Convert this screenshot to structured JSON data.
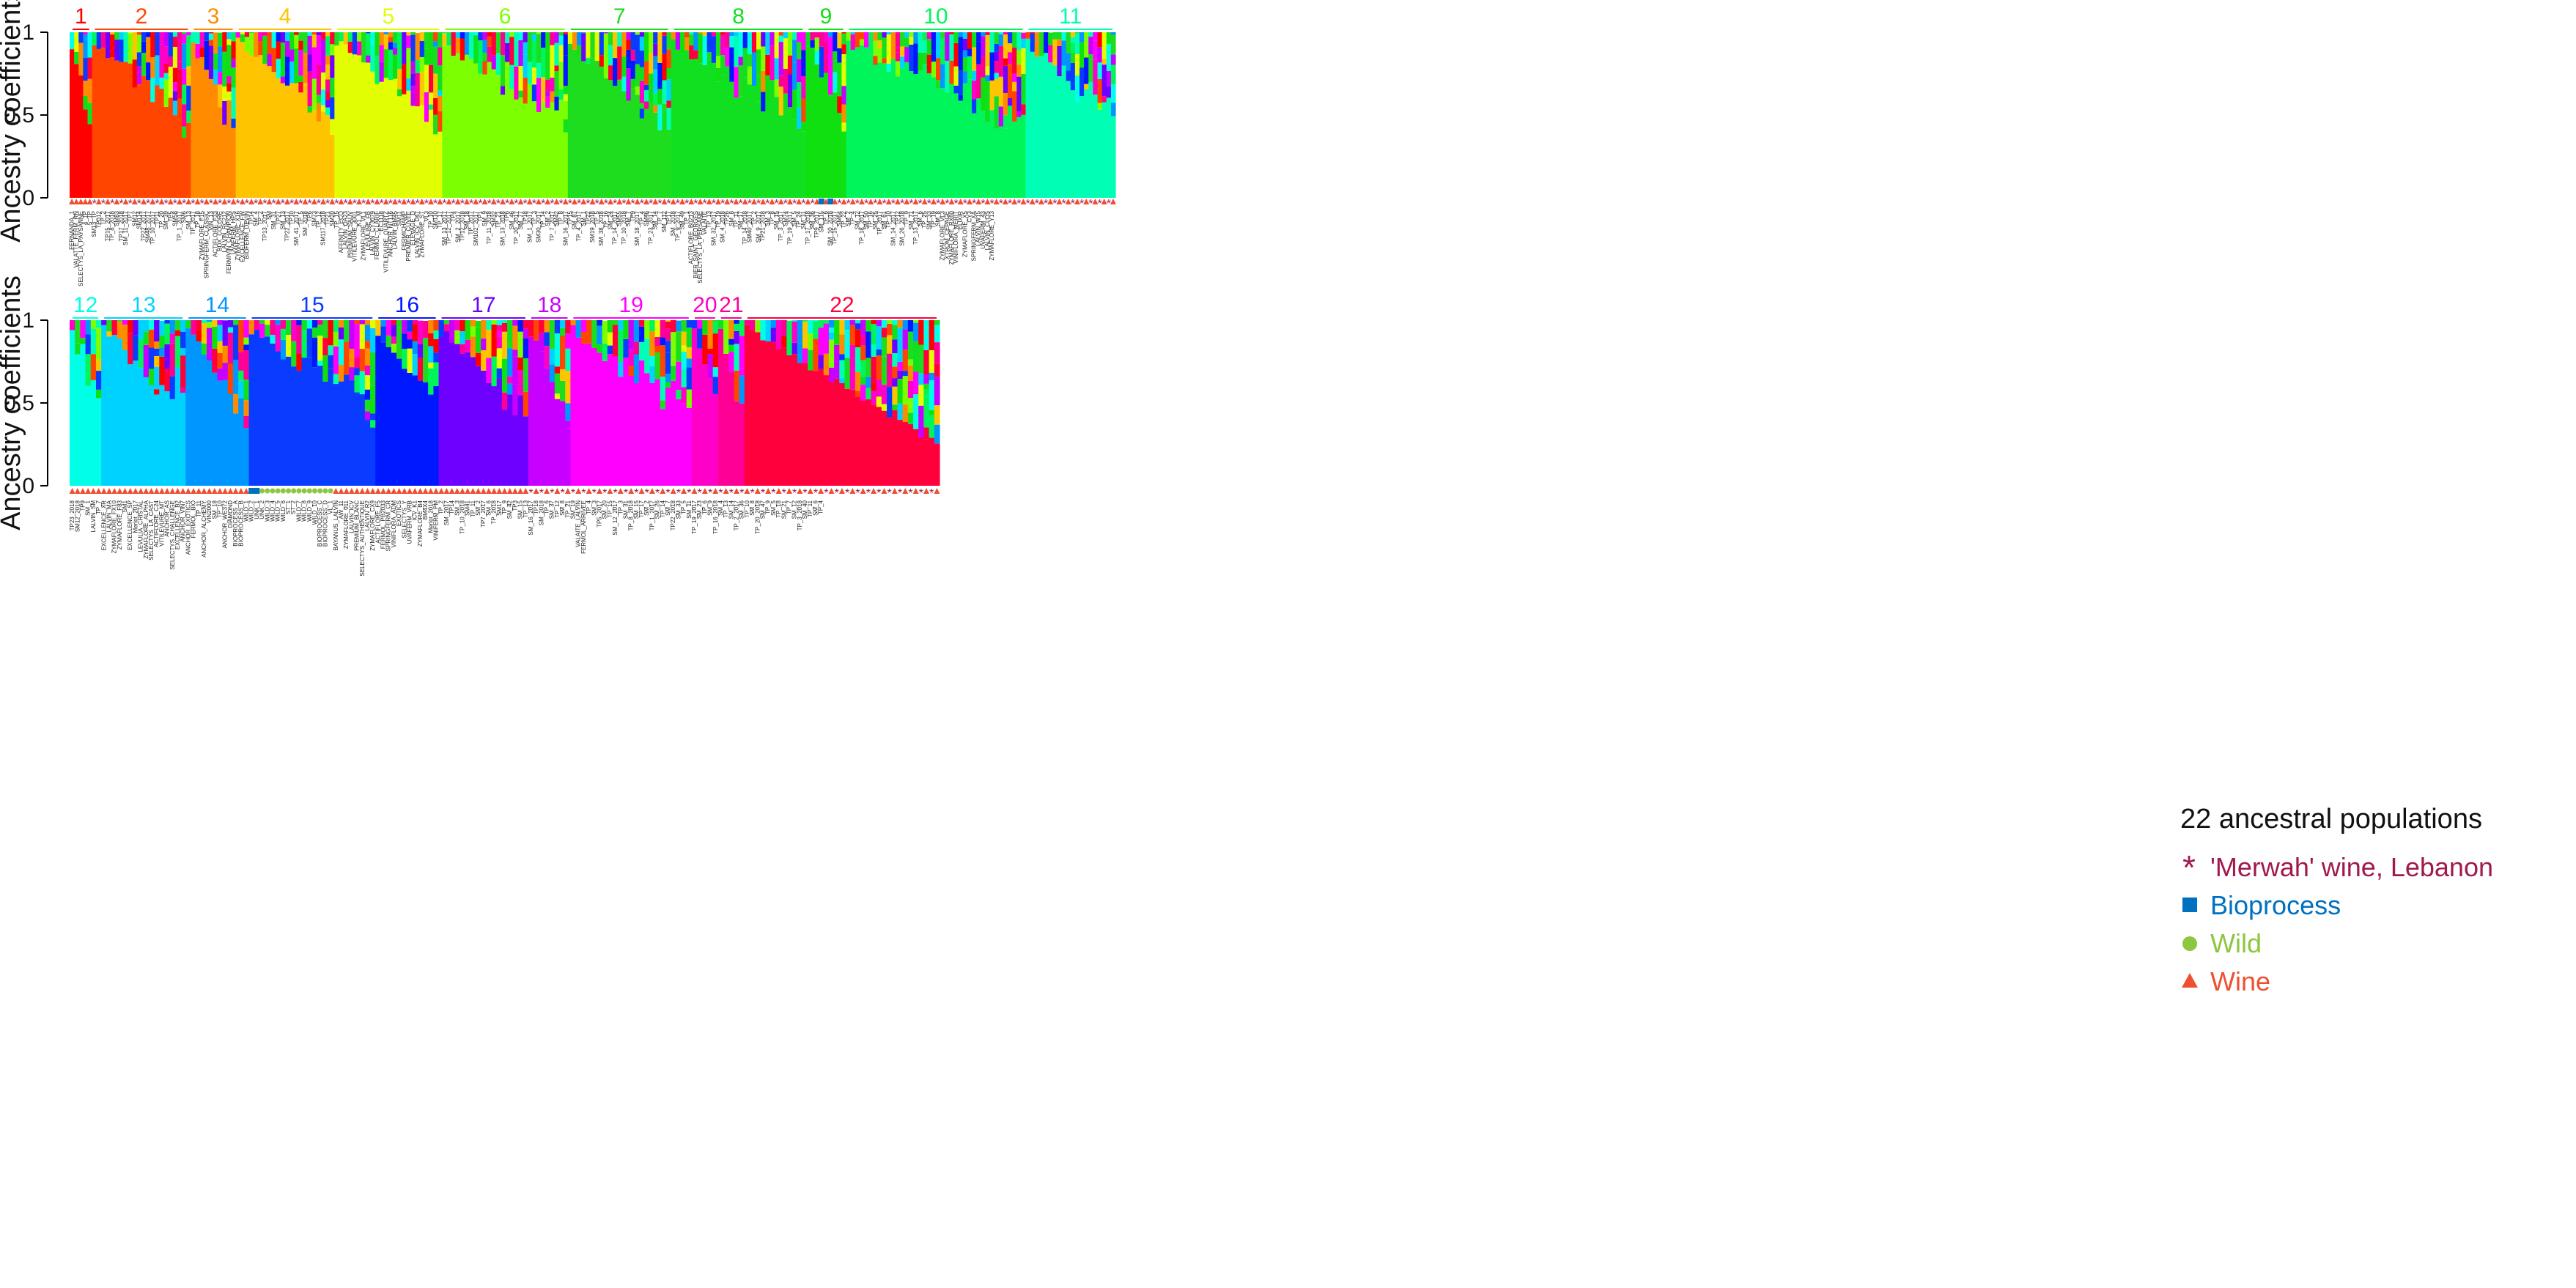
{
  "chart_data": [
    {
      "type": "bar",
      "stacked": true,
      "panel": "top",
      "ylabel": "Ancestry coefficients",
      "ylim": [
        0,
        1
      ],
      "y_ticks": [
        "0",
        "0.5",
        "1"
      ],
      "clusters": [
        {
          "label": "1",
          "color": "#ff0000",
          "n": 5
        },
        {
          "label": "2",
          "color": "#ff4500",
          "n": 22
        },
        {
          "label": "3",
          "color": "#ff8c00",
          "n": 10
        },
        {
          "label": "4",
          "color": "#ffc400",
          "n": 22
        },
        {
          "label": "5",
          "color": "#e1ff00",
          "n": 24
        },
        {
          "label": "6",
          "color": "#7cff00",
          "n": 28
        },
        {
          "label": "7",
          "color": "#1edc1e",
          "n": 23
        },
        {
          "label": "8",
          "color": "#10e020",
          "n": 30
        },
        {
          "label": "9",
          "color": "#10e010",
          "n": 9
        },
        {
          "label": "10",
          "color": "#00f55a",
          "n": 40
        },
        {
          "label": "11",
          "color": "#00ffb4",
          "n": 20
        }
      ],
      "sample_labels": [
        "FERNANDA_1",
        "VALATTE_FERM_RN",
        "SELECTYS_LA_PAYSANNE",
        "4_TP",
        "5_TP",
        "SM13_TP",
        "TP012",
        "TP_2",
        "TP15_2017",
        "TP_8_2018",
        "SM83",
        "TP17_2018",
        "SM_11_2017",
        "TP7",
        "SM12",
        "SM114",
        "TP22_2017",
        "SM48_2017",
        "TP_10_2017",
        "TP11",
        "TP_20",
        "SM_39",
        "TP5",
        "SM58",
        "TP_1_2017",
        "SM6",
        "SM_13",
        "TP_2017",
        "TP_18",
        "ZYMAFLORE_F15",
        "SPRINGFERM_CLASSIC",
        "VIN_13",
        "ACTIFLORE_F33",
        "BDX_COLORE",
        "LALVIN_RC212",
        "FERMIVIN_CHAMPION",
        "UVAFERM_HPS",
        "ZYMAFLORE_X16",
        "EXCELLENCE_FW",
        "BIOFERM_DEVIN",
        "TP14",
        "SM_4",
        "TP_2",
        "TP13_2017",
        "SM",
        "SM_31",
        "TP27",
        "SM_13",
        "TP22_2017",
        "TP10",
        "SM_41_2017",
        "TP_5",
        "SM_2018",
        "TP6",
        "SM73",
        "TP_12",
        "SM117_2018",
        "TP21",
        "SM20",
        "TP_15",
        "AFFINITY_ECO",
        "LALVIN_QA23",
        "PREMIUM_SAUV",
        "VITILEVURE_3001",
        "K1_M",
        "ZYMAFLORE_VL1",
        "LEVULINE_FB",
        "LALVIN_CY3079",
        "FERMOL_CLARIF",
        "EC1118",
        "VITILEVURE_QUARTZ",
        "ANCHOR_NT116",
        "LALVIN_BM45",
        "SM11",
        "FERMICHAMP",
        "PREMIER_CUVEE",
        "ELEVAGE_D",
        "LALVIN_ICV_D47",
        "ZYMAFLORE_ST",
        "VL3",
        "TP_10",
        "SM110",
        "TP_17",
        "SM_13_2017",
        "TP_12_2017",
        "TP4",
        "SM_2_2017",
        "TP12_2018",
        "SM_18",
        "TP_2017",
        "SM102_2017",
        "TP1",
        "SM_9",
        "TP_11_2018",
        "SM32",
        "TP_21",
        "SM_13_2018",
        "TP6",
        "SM_46",
        "TP_20_2017",
        "SM_77",
        "TP18",
        "SM_1_2017",
        "TP_3",
        "SM30_2017",
        "TP_14",
        "SM_2",
        "TP_7_2017",
        "SM42",
        "TP_8",
        "SM_16_2017",
        "TP15",
        "SM_87",
        "TP_4_2017",
        "SM_1",
        "TP22",
        "SM19_2018",
        "TP_5",
        "SM_38_2018",
        "TP_16",
        "SM_24",
        "TP_14_2017",
        "SM55",
        "TP_10_2018",
        "SM_7",
        "TP9",
        "SM_18_2017",
        "TP_4",
        "SM46",
        "TP_23_2017",
        "SM_14",
        "TP_7",
        "SM_112",
        "TP17",
        "SM_2018",
        "TP_9_2017",
        "SM_49",
        "TP_1",
        "ACTIFLORE_B0213",
        "BIER_SAINT_GEORGES",
        "SELECTYS_LA_PERSANE",
        "VALAITE",
        "TP_13",
        "SM_32_2017",
        "TP_19",
        "SM_4_2018",
        "TP26",
        "SM_8",
        "TP_11",
        "SM_17",
        "TP_14_2018",
        "SM40_2017",
        "TP_2",
        "SM_9_2017",
        "TP21_2018",
        "SM_3",
        "TP_8",
        "SM_15",
        "TP_3_2017",
        "SM74",
        "TP_19_2017",
        "SM_5",
        "TP_24",
        "SM_11",
        "TP_17_2018",
        "SM_36",
        "TP9_2017",
        "SM_115",
        "TP_6",
        "SM_10_2018",
        "TP_15_2017",
        "SM64",
        "TP_22",
        "SM_2",
        "TP_4",
        "SM_12",
        "TP_18_2017",
        "SM_50",
        "TP_16",
        "SM_25",
        "TP_2017",
        "SM_61",
        "TP_10",
        "SM_14_2017",
        "TP12",
        "SM_26_2018",
        "TP_9",
        "SM_71",
        "TP_13_2017",
        "SM_6",
        "TP_25",
        "SM_33",
        "TP_19",
        "SM_8",
        "ZYMAFLORE_VL3",
        "XTROM_CEPAGE",
        "ZYMAFLORE_RX60",
        "VINIFLORA_MERIT",
        "ELIXIR",
        "ZYMAFLORE_X5",
        "CY3",
        "SPRINGFERM_XA",
        "LALVIN_W15",
        "UVAFERM_43",
        "LALVIN_CLOS",
        "ZYMAFLORE_Y13"
      ]
    },
    {
      "type": "bar",
      "stacked": true,
      "panel": "bottom",
      "ylabel": "Ancestry coefficients",
      "ylim": [
        0,
        1
      ],
      "y_ticks": [
        "0",
        "0.5",
        "1"
      ],
      "clusters": [
        {
          "label": "12",
          "color": "#00ffe6",
          "n": 6
        },
        {
          "label": "13",
          "color": "#00d2ff",
          "n": 16
        },
        {
          "label": "14",
          "color": "#0096ff",
          "n": 12
        },
        {
          "label": "15",
          "color": "#0a3cff",
          "n": 24
        },
        {
          "label": "16",
          "color": "#0018ff",
          "n": 12
        },
        {
          "label": "17",
          "color": "#6e00ff",
          "n": 17
        },
        {
          "label": "18",
          "color": "#c800ff",
          "n": 8
        },
        {
          "label": "19",
          "color": "#ff00ff",
          "n": 23
        },
        {
          "label": "20",
          "color": "#ff00c8",
          "n": 5
        },
        {
          "label": "21",
          "color": "#ff0096",
          "n": 5
        },
        {
          "label": "22",
          "color": "#ff003c",
          "n": 37
        }
      ],
      "sample_labels": [
        "TP23_2018",
        "SM12_2018",
        "TP9",
        "SM_1",
        "LALVIN_SM",
        "TP_7",
        "EXCELLENCE_XR",
        "LALVIN_MA",
        "ZYMAFLORE_FX10",
        "ZYMAFLORE_F83",
        "SM1",
        "EXCELLENCE_SP",
        "Merlot_2017",
        "LEVULIA_CRISTAL",
        "ZYMAFLORE_ALPHA",
        "SELECTYS_LA_CAST",
        "ACTIFLORE_C24",
        "VITILEVURE_MT",
        "ANCHOR_AS",
        "SELECTYS_CHALLENGE",
        "EXCELLENCE_B2",
        "ANCHOR_VIN7",
        "ANCHOR_EXOTICS",
        "FERMOL_BIO",
        "TP_11",
        "ANCHOR_ALCHEMY",
        "VIN2000",
        "SM_18",
        "TP_10",
        "ANCHOR_WE372",
        "DIAMOND",
        "BIOPROCESS_A",
        "BIOPROCESS_B",
        "WILD_1",
        "WILD_2",
        "UNK_1",
        "UNK_2",
        "WILD_3",
        "WILD_4",
        "WILD_5",
        "WILD_6",
        "ST_1",
        "ST_2",
        "WILD_7",
        "WILD_8",
        "WILD_9",
        "WILD_10",
        "BIOPROCESS_C",
        "BIOPROCESS_D",
        "VL_1",
        "BAYANUS_LALVIN",
        "AW_11",
        "ZYMAFLORE_011",
        "LALVIN_ICV",
        "PREMIUM_BLANC",
        "SELECTYS_AUTHENTIQUE",
        "LALVIN_R2",
        "ZYMAFLORE_CX9",
        "ACTIFLORE_F5",
        "FERMOL_PB2033",
        "SPRINGFERM_CR",
        "VINIFLORA_ADM",
        "EXOTICS",
        "SELECTYS_Y",
        "UVAFERM_VRB",
        "ICV_K1",
        "ZYMAFLORE_B4",
        "BM4X4",
        "Merlot_2018",
        "VINIFERM_PM",
        "TP_2",
        "SM_2017",
        "TP14",
        "SM_3",
        "TP_10_2018",
        "SM41",
        "TP_11",
        "SM_2",
        "TP7_2017",
        "SM_6",
        "TP_2018",
        "SM17",
        "TP_9",
        "SM_42",
        "TP3",
        "SM_15",
        "TP_13",
        "SM_16_2017",
        "TP18",
        "SM_2018",
        "TP_6",
        "SM_37",
        "TP_12",
        "SM_8",
        "TP_21",
        "SM_19",
        "VALAITE_LALVIN",
        "FERMOL_ARRIVEE",
        "TP_4",
        "SM_3",
        "TP5_2017",
        "SM_20",
        "TP_15",
        "SM_12_2017",
        "TP_3",
        "SM_31",
        "TP_8_2018",
        "SM_15",
        "TP_17",
        "SM_2",
        "TP_1_2017",
        "SM_26",
        "TP_14",
        "SM_7",
        "TP22_2018",
        "SM_33",
        "TP_5",
        "SM_11",
        "TP_19_2017",
        "SM_23",
        "TP_6",
        "SM_9",
        "TP_16_2018",
        "SM_4",
        "TP_13",
        "SM_14",
        "TP_2_2017",
        "SM_36",
        "TP_10",
        "SM_8",
        "TP_20_2018",
        "SM_47",
        "TP_9",
        "SM_5",
        "TP_18",
        "SM_21",
        "TP_7",
        "SM_12",
        "TP_3_2018",
        "SM_40",
        "TP_11",
        "SM_6",
        "TP_4"
      ]
    }
  ],
  "legend": {
    "title": "22 ancestral populations",
    "items": [
      {
        "label": "'Merwah' wine, Lebanon",
        "symbol": "asterisk",
        "color": "#a0184e"
      },
      {
        "label": "Bioprocess",
        "symbol": "square",
        "color": "#0070c0"
      },
      {
        "label": "Wild",
        "symbol": "circle",
        "color": "#8dc63f"
      },
      {
        "label": "Wine",
        "symbol": "triangle",
        "color": "#f04e30"
      }
    ]
  }
}
